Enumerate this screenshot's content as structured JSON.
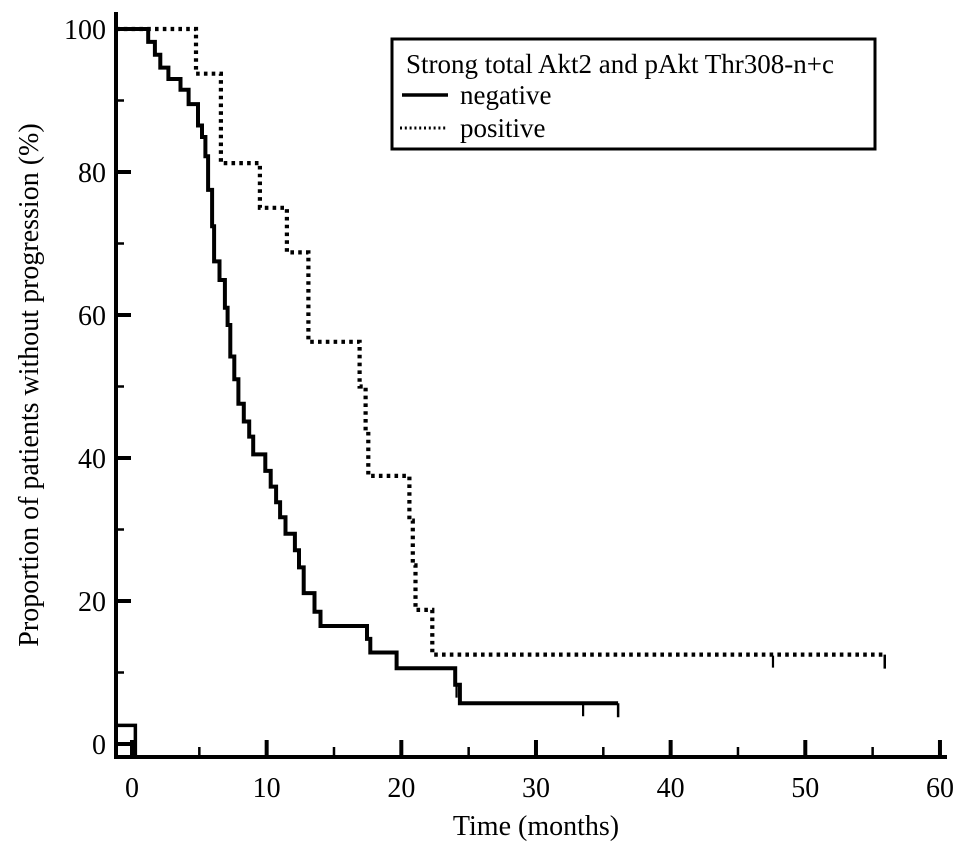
{
  "colors": {
    "line": "#000000",
    "background": "#ffffff"
  },
  "chart_data": {
    "type": "line",
    "subtype": "kaplan-meier-step",
    "xlabel": "Time (months)",
    "ylabel": "Proportion of patients without progression (%)",
    "xlim": [
      0,
      60
    ],
    "ylim": [
      0,
      100
    ],
    "x_ticks_major": [
      0,
      10,
      20,
      30,
      40,
      50,
      60
    ],
    "x_ticks_minor": [
      5,
      15,
      25,
      35,
      45,
      55
    ],
    "y_ticks_major": [
      0,
      20,
      40,
      60,
      80,
      100
    ],
    "y_ticks_minor": [
      10,
      30,
      50,
      70,
      90
    ],
    "grid": false,
    "legend": {
      "position": "upper-right-inside",
      "title": "Strong total Akt2 and pAkt Thr308-n+c",
      "entries": [
        {
          "label": "negative",
          "style": "solid"
        },
        {
          "label": "positive",
          "style": "dotted"
        }
      ]
    },
    "origin_marker": {
      "present": true,
      "end_time": 0.25,
      "top_pct": 2.6
    },
    "series": [
      {
        "name": "negative",
        "style": "solid",
        "steps": [
          [
            0,
            100
          ],
          [
            1.2,
            98.2
          ],
          [
            1.7,
            96.4
          ],
          [
            2.1,
            94.6
          ],
          [
            2.7,
            93.0
          ],
          [
            3.6,
            91.5
          ],
          [
            4.2,
            89.5
          ],
          [
            4.9,
            86.5
          ],
          [
            5.2,
            84.9
          ],
          [
            5.45,
            82.2
          ],
          [
            5.65,
            77.5
          ],
          [
            5.95,
            72.4
          ],
          [
            6.1,
            67.5
          ],
          [
            6.5,
            64.9
          ],
          [
            6.9,
            61.0
          ],
          [
            7.1,
            58.6
          ],
          [
            7.3,
            54.2
          ],
          [
            7.6,
            51.0
          ],
          [
            7.9,
            47.6
          ],
          [
            8.3,
            45.1
          ],
          [
            8.7,
            43.0
          ],
          [
            9.0,
            40.5
          ],
          [
            9.9,
            38.2
          ],
          [
            10.3,
            36.0
          ],
          [
            10.7,
            33.8
          ],
          [
            11.0,
            31.7
          ],
          [
            11.4,
            29.4
          ],
          [
            12.1,
            27.1
          ],
          [
            12.4,
            24.7
          ],
          [
            12.75,
            21.1
          ],
          [
            13.55,
            18.5
          ],
          [
            14.0,
            16.5
          ],
          [
            17.45,
            14.7
          ],
          [
            17.7,
            12.8
          ],
          [
            19.65,
            10.6
          ],
          [
            24.0,
            8.3
          ],
          [
            24.35,
            5.7
          ]
        ],
        "end_time": 36.1,
        "censor_times": [
          24.1,
          33.5
        ],
        "terminal_tick": true
      },
      {
        "name": "positive",
        "style": "dotted",
        "steps": [
          [
            0,
            100
          ],
          [
            4.75,
            93.75
          ],
          [
            6.6,
            81.25
          ],
          [
            9.5,
            75.0
          ],
          [
            11.5,
            68.75
          ],
          [
            13.1,
            56.25
          ],
          [
            16.9,
            50.0
          ],
          [
            17.35,
            43.75
          ],
          [
            17.55,
            37.5
          ],
          [
            20.6,
            31.25
          ],
          [
            20.85,
            25.0
          ],
          [
            21.05,
            18.75
          ],
          [
            22.3,
            12.5
          ]
        ],
        "end_time": 55.9,
        "censor_times": [
          47.6
        ],
        "terminal_tick": true
      }
    ]
  }
}
